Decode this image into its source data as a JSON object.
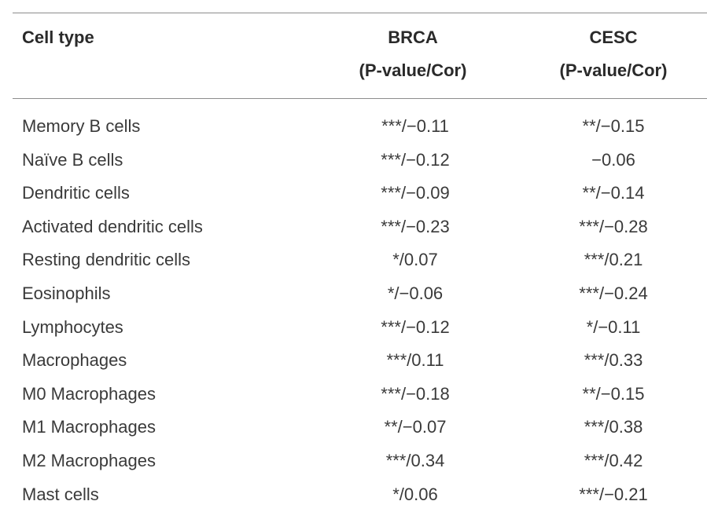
{
  "header": {
    "cell_type": "Cell type",
    "brca_line1": "BRCA",
    "brca_line2": "(P-value/Cor)",
    "cesc_line1": "CESC",
    "cesc_line2": "(P-value/Cor)"
  },
  "rows": [
    {
      "name": "Memory B cells",
      "brca": "***/−0.11",
      "cesc": "**/−0.15"
    },
    {
      "name": "Naïve B cells",
      "brca": "***/−0.12",
      "cesc": "−0.06"
    },
    {
      "name": "Dendritic cells",
      "brca": "***/−0.09",
      "cesc": "**/−0.14"
    },
    {
      "name": "Activated dendritic cells",
      "brca": "***/−0.23",
      "cesc": "***/−0.28"
    },
    {
      "name": "Resting dendritic cells",
      "brca": "*/0.07",
      "cesc": "***/0.21"
    },
    {
      "name": "Eosinophils",
      "brca": "*/−0.06",
      "cesc": "***/−0.24"
    },
    {
      "name": "Lymphocytes",
      "brca": "***/−0.12",
      "cesc": "*/−0.11"
    },
    {
      "name": "Macrophages",
      "brca": "***/0.11",
      "cesc": "***/0.33"
    },
    {
      "name": "M0 Macrophages",
      "brca": "***/−0.18",
      "cesc": "**/−0.15"
    },
    {
      "name": "M1 Macrophages",
      "brca": "**/−0.07",
      "cesc": "***/0.38"
    },
    {
      "name": "M2 Macrophages",
      "brca": "***/0.34",
      "cesc": "***/0.42"
    },
    {
      "name": "Mast cells",
      "brca": "*/0.06",
      "cesc": "***/−0.21"
    }
  ]
}
